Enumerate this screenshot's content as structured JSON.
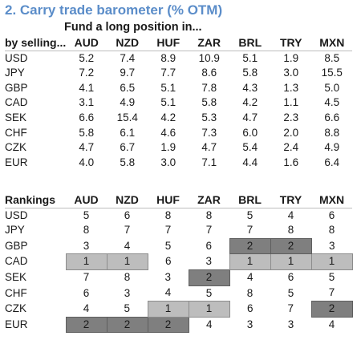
{
  "title": "2. Carry trade barometer (% OTM)",
  "subtitle": "Fund a long position in...",
  "chart_data": [
    {
      "type": "table",
      "title": "2. Carry trade barometer (% OTM)",
      "subtitle": "Fund a long position in...",
      "corner_label": "by selling...",
      "columns": [
        "AUD",
        "NZD",
        "HUF",
        "ZAR",
        "BRL",
        "TRY",
        "MXN"
      ],
      "rows": [
        {
          "label": "USD",
          "values": [
            "5.2",
            "7.4",
            "8.9",
            "10.9",
            "5.1",
            "1.9",
            "8.5"
          ]
        },
        {
          "label": "JPY",
          "values": [
            "7.2",
            "9.7",
            "7.7",
            "8.6",
            "5.8",
            "3.0",
            "15.5"
          ]
        },
        {
          "label": "GBP",
          "values": [
            "4.1",
            "6.5",
            "5.1",
            "7.8",
            "4.3",
            "1.3",
            "5.0"
          ]
        },
        {
          "label": "CAD",
          "values": [
            "3.1",
            "4.9",
            "5.1",
            "5.8",
            "4.2",
            "1.1",
            "4.5"
          ]
        },
        {
          "label": "SEK",
          "values": [
            "6.6",
            "15.4",
            "4.2",
            "5.3",
            "4.7",
            "2.3",
            "6.6"
          ]
        },
        {
          "label": "CHF",
          "values": [
            "5.8",
            "6.1",
            "4.6",
            "7.3",
            "6.0",
            "2.0",
            "8.8"
          ]
        },
        {
          "label": "CZK",
          "values": [
            "4.7",
            "6.7",
            "1.9",
            "4.7",
            "5.4",
            "2.4",
            "4.9"
          ]
        },
        {
          "label": "EUR",
          "values": [
            "4.0",
            "5.8",
            "3.0",
            "7.1",
            "4.4",
            "1.6",
            "6.4"
          ]
        }
      ]
    },
    {
      "type": "table",
      "corner_label": "Rankings",
      "columns": [
        "AUD",
        "NZD",
        "HUF",
        "ZAR",
        "BRL",
        "TRY",
        "MXN"
      ],
      "highlight_colors": {
        "1": "#bdbdbd",
        "2": "#7f7f7f"
      },
      "rows": [
        {
          "label": "USD",
          "values": [
            "5",
            "6",
            "8",
            "8",
            "5",
            "4",
            "6"
          ]
        },
        {
          "label": "JPY",
          "values": [
            "8",
            "7",
            "7",
            "7",
            "7",
            "8",
            "8"
          ]
        },
        {
          "label": "GBP",
          "values": [
            "3",
            "4",
            "5",
            "6",
            "2",
            "2",
            "3"
          ]
        },
        {
          "label": "CAD",
          "values": [
            "1",
            "1",
            "6",
            "3",
            "1",
            "1",
            "1"
          ]
        },
        {
          "label": "SEK",
          "values": [
            "7",
            "8",
            "3",
            "2",
            "4",
            "6",
            "5"
          ]
        },
        {
          "label": "CHF",
          "values": [
            "6",
            "3",
            "4",
            "5",
            "8",
            "5",
            "7"
          ]
        },
        {
          "label": "CZK",
          "values": [
            "4",
            "5",
            "1",
            "1",
            "6",
            "7",
            "2"
          ]
        },
        {
          "label": "EUR",
          "values": [
            "2",
            "2",
            "2",
            "4",
            "3",
            "3",
            "4"
          ]
        }
      ]
    }
  ]
}
